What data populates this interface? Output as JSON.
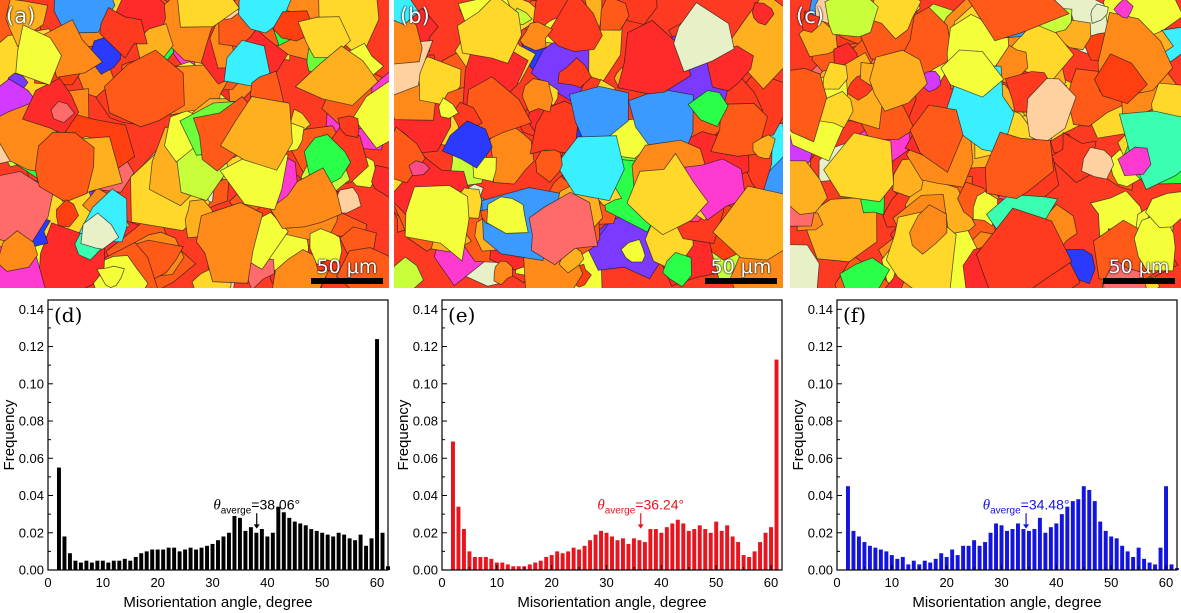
{
  "maps": [
    {
      "label": "(a)",
      "scale_bar": "50 μm"
    },
    {
      "label": "(b)",
      "scale_bar": "50 μm"
    },
    {
      "label": "(c)",
      "scale_bar": "50 μm"
    }
  ],
  "chart_data": [
    {
      "type": "bar",
      "panel_label": "(d)",
      "xlabel": "Misorientation angle, degree",
      "ylabel": "Frequency",
      "xlim": [
        0,
        62
      ],
      "ylim": [
        0,
        0.145
      ],
      "xticks": [
        0,
        10,
        20,
        30,
        40,
        50,
        60
      ],
      "yticks": [
        0.0,
        0.02,
        0.04,
        0.06,
        0.08,
        0.1,
        0.12,
        0.14
      ],
      "bar_color": "#000000",
      "x": [
        2,
        3,
        4,
        5,
        6,
        7,
        8,
        9,
        10,
        11,
        12,
        13,
        14,
        15,
        16,
        17,
        18,
        19,
        20,
        21,
        22,
        23,
        24,
        25,
        26,
        27,
        28,
        29,
        30,
        31,
        32,
        33,
        34,
        35,
        36,
        37,
        38,
        39,
        40,
        41,
        42,
        43,
        44,
        45,
        46,
        47,
        48,
        49,
        50,
        51,
        52,
        53,
        54,
        55,
        56,
        57,
        58,
        59,
        60,
        61,
        62
      ],
      "values": [
        0.055,
        0.018,
        0.009,
        0.005,
        0.004,
        0.005,
        0.004,
        0.005,
        0.005,
        0.004,
        0.005,
        0.005,
        0.006,
        0.005,
        0.007,
        0.009,
        0.01,
        0.011,
        0.011,
        0.011,
        0.012,
        0.012,
        0.01,
        0.011,
        0.012,
        0.011,
        0.012,
        0.013,
        0.014,
        0.016,
        0.018,
        0.02,
        0.029,
        0.028,
        0.021,
        0.023,
        0.02,
        0.022,
        0.018,
        0.02,
        0.034,
        0.031,
        0.028,
        0.026,
        0.025,
        0.024,
        0.022,
        0.021,
        0.02,
        0.019,
        0.018,
        0.02,
        0.019,
        0.017,
        0.016,
        0.019,
        0.013,
        0.017,
        0.124,
        0.02,
        0.002
      ],
      "annotation": {
        "prefix": "θ",
        "subscript": "averge",
        "value": "=38.06°",
        "x": 38.06,
        "color": "#000000"
      }
    },
    {
      "type": "bar",
      "panel_label": "(e)",
      "xlabel": "Misorientation angle, degree",
      "ylabel": "Frequency",
      "xlim": [
        0,
        62
      ],
      "ylim": [
        0,
        0.145
      ],
      "xticks": [
        0,
        10,
        20,
        30,
        40,
        50,
        60
      ],
      "yticks": [
        0.0,
        0.02,
        0.04,
        0.06,
        0.08,
        0.1,
        0.12,
        0.14
      ],
      "bar_color": "#e8141e",
      "x": [
        2,
        3,
        4,
        5,
        6,
        7,
        8,
        9,
        10,
        11,
        12,
        13,
        14,
        15,
        16,
        17,
        18,
        19,
        20,
        21,
        22,
        23,
        24,
        25,
        26,
        27,
        28,
        29,
        30,
        31,
        32,
        33,
        34,
        35,
        36,
        37,
        38,
        39,
        40,
        41,
        42,
        43,
        44,
        45,
        46,
        47,
        48,
        49,
        50,
        51,
        52,
        53,
        54,
        55,
        56,
        57,
        58,
        59,
        60,
        61
      ],
      "values": [
        0.069,
        0.034,
        0.022,
        0.01,
        0.007,
        0.007,
        0.007,
        0.006,
        0.004,
        0.004,
        0.003,
        0.002,
        0.002,
        0.002,
        0.003,
        0.004,
        0.005,
        0.007,
        0.008,
        0.01,
        0.009,
        0.01,
        0.012,
        0.011,
        0.013,
        0.016,
        0.019,
        0.021,
        0.02,
        0.018,
        0.016,
        0.017,
        0.014,
        0.017,
        0.016,
        0.015,
        0.022,
        0.022,
        0.02,
        0.023,
        0.025,
        0.027,
        0.025,
        0.021,
        0.022,
        0.024,
        0.022,
        0.02,
        0.026,
        0.021,
        0.024,
        0.018,
        0.015,
        0.008,
        0.007,
        0.01,
        0.015,
        0.02,
        0.023,
        0.113
      ],
      "annotation": {
        "prefix": "θ",
        "subscript": "averge",
        "value": "=36.24°",
        "x": 36.24,
        "color": "#e8141e"
      }
    },
    {
      "type": "bar",
      "panel_label": "(f)",
      "xlabel": "Misorientation angle, degree",
      "ylabel": "Frequency",
      "xlim": [
        0,
        62
      ],
      "ylim": [
        0,
        0.145
      ],
      "xticks": [
        0,
        10,
        20,
        30,
        40,
        50,
        60
      ],
      "yticks": [
        0.0,
        0.02,
        0.04,
        0.06,
        0.08,
        0.1,
        0.12,
        0.14
      ],
      "bar_color": "#1414e0",
      "x": [
        2,
        3,
        4,
        5,
        6,
        7,
        8,
        9,
        10,
        11,
        12,
        13,
        14,
        15,
        16,
        17,
        18,
        19,
        20,
        21,
        22,
        23,
        24,
        25,
        26,
        27,
        28,
        29,
        30,
        31,
        32,
        33,
        34,
        35,
        36,
        37,
        38,
        39,
        40,
        41,
        42,
        43,
        44,
        45,
        46,
        47,
        48,
        49,
        50,
        51,
        52,
        53,
        54,
        55,
        56,
        57,
        58,
        59,
        60,
        61,
        62
      ],
      "values": [
        0.045,
        0.021,
        0.018,
        0.015,
        0.013,
        0.012,
        0.011,
        0.01,
        0.008,
        0.006,
        0.007,
        0.003,
        0.005,
        0.003,
        0.005,
        0.004,
        0.006,
        0.009,
        0.007,
        0.011,
        0.008,
        0.013,
        0.013,
        0.016,
        0.013,
        0.015,
        0.02,
        0.025,
        0.024,
        0.021,
        0.022,
        0.025,
        0.022,
        0.021,
        0.022,
        0.028,
        0.02,
        0.023,
        0.025,
        0.03,
        0.034,
        0.037,
        0.038,
        0.045,
        0.043,
        0.037,
        0.026,
        0.021,
        0.018,
        0.017,
        0.013,
        0.01,
        0.007,
        0.012,
        0.006,
        0.004,
        0.003,
        0.012,
        0.045,
        0.003,
        0.001
      ],
      "annotation": {
        "prefix": "θ",
        "subscript": "averge",
        "value": "=34.48°",
        "x": 34.48,
        "color": "#1414e0"
      }
    }
  ]
}
